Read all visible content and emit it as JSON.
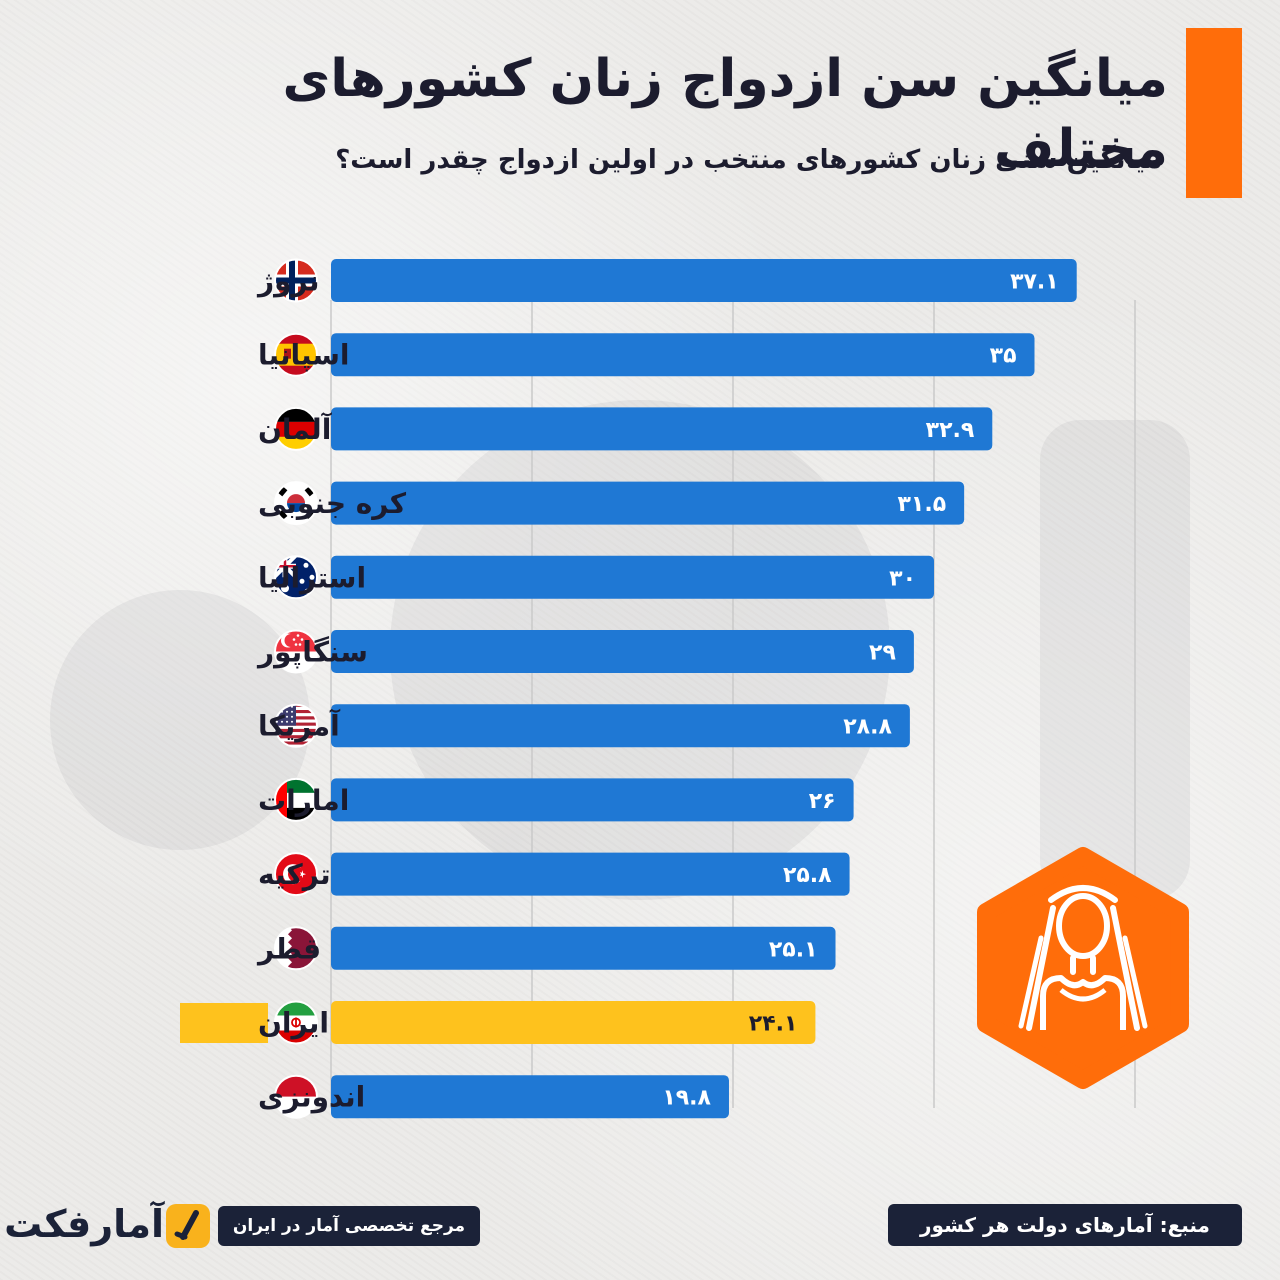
{
  "title": "میانگین سن ازدواج زنان کشورهای مختلف",
  "subtitle": "میانگین سنی زنان کشورهای منتخب در اولین ازدواج چقدر است؟",
  "colors": {
    "bar": "#1f78d4",
    "highlight": "#fec21d",
    "accent": "#ff6d0a",
    "dark": "#1b2238"
  },
  "chart_data": {
    "type": "bar",
    "orientation": "horizontal",
    "grid": true,
    "categories": [
      "نروژ",
      "اسپانیا",
      "آلمان",
      "کره جنوبی",
      "استرالیا",
      "سنگاپور",
      "آمریکا",
      "امارات",
      "ترکیه",
      "قطر",
      "ایران",
      "اندونزی"
    ],
    "values": [
      37.1,
      35,
      32.9,
      31.5,
      30,
      29,
      28.8,
      26,
      25.8,
      25.1,
      24.1,
      19.8
    ],
    "value_labels": [
      "۳۷.۱",
      "۳۵",
      "۳۲.۹",
      "۳۱.۵",
      "۳۰",
      "۲۹",
      "۲۸.۸",
      "۲۶",
      "۲۵.۸",
      "۲۵.۱",
      "۲۴.۱",
      "۱۹.۸"
    ],
    "flags": [
      "norway-flag-icon",
      "spain-flag-icon",
      "germany-flag-icon",
      "south-korea-flag-icon",
      "australia-flag-icon",
      "singapore-flag-icon",
      "usa-flag-icon",
      "uae-flag-icon",
      "turkey-flag-icon",
      "qatar-flag-icon",
      "iran-flag-icon",
      "indonesia-flag-icon"
    ],
    "highlighted_category": "ایران",
    "xlim": [
      0,
      40
    ]
  },
  "decoration": {
    "icon": "bride-icon"
  },
  "footer": {
    "source": "منبع: آمارهای دولت هر کشور",
    "tagline": "مرجع تخصصی آمار در ایران",
    "logo_text": "آمارفکت",
    "logo_icon": "amarfact-logo-icon"
  }
}
